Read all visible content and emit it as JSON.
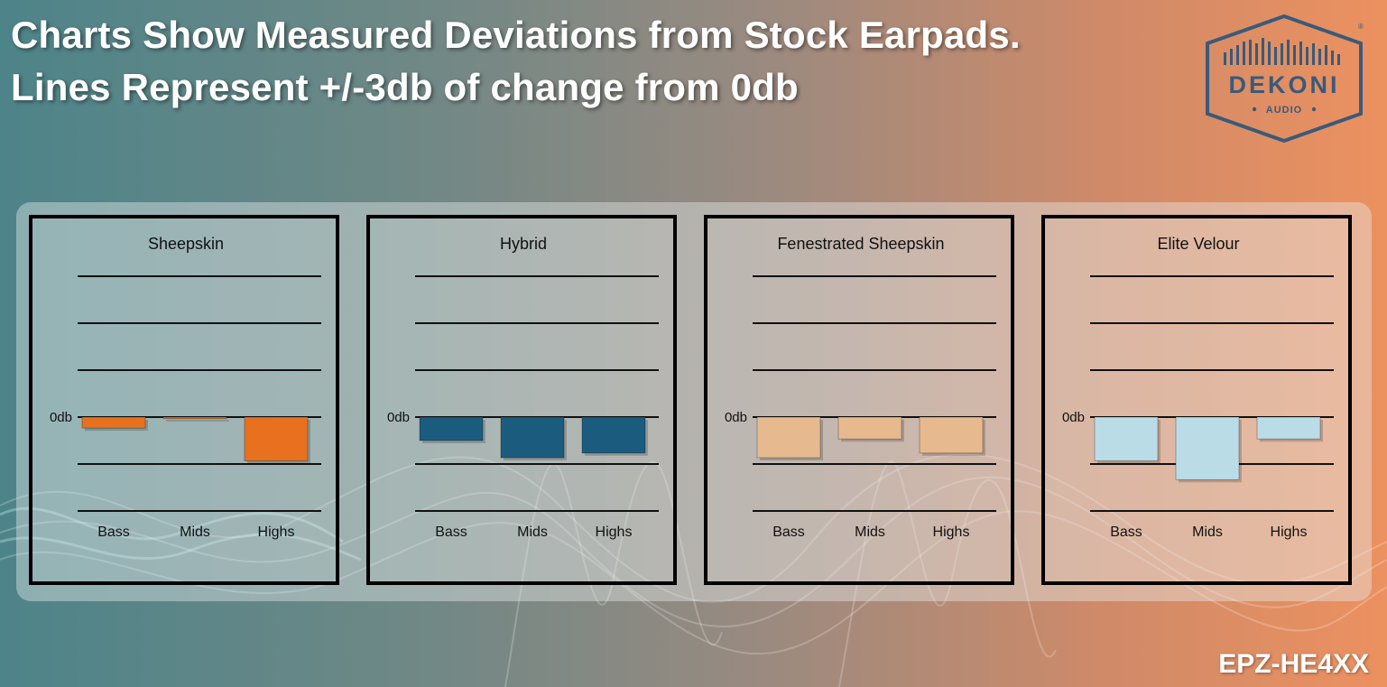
{
  "headline": {
    "line1": "Charts Show Measured Deviations from Stock Earpads.",
    "line2": "Lines Represent +/-3db of change from 0db"
  },
  "logo": {
    "brand": "DEKONI",
    "sub": "AUDIO",
    "registered": "®",
    "color": "#3a5a7a"
  },
  "model_code": "EPZ-HE4XX",
  "chart_data": [
    {
      "type": "bar",
      "title": "Sheepskin",
      "categories": [
        "Bass",
        "Mids",
        "Highs"
      ],
      "values": [
        -0.7,
        -0.1,
        -2.8
      ],
      "zero_label": "0db",
      "ylim": [
        -6,
        9
      ],
      "gridlines": [
        9,
        6,
        3,
        -3,
        -6
      ],
      "color": "#e8711f"
    },
    {
      "type": "bar",
      "title": "Hybrid",
      "categories": [
        "Bass",
        "Mids",
        "Highs"
      ],
      "values": [
        -1.5,
        -2.6,
        -2.3
      ],
      "zero_label": "0db",
      "ylim": [
        -6,
        9
      ],
      "gridlines": [
        9,
        6,
        3,
        -3,
        -6
      ],
      "color": "#1b5b7e"
    },
    {
      "type": "bar",
      "title": "Fenestrated Sheepskin",
      "categories": [
        "Bass",
        "Mids",
        "Highs"
      ],
      "values": [
        -2.6,
        -1.4,
        -2.3
      ],
      "zero_label": "0db",
      "ylim": [
        -6,
        9
      ],
      "gridlines": [
        9,
        6,
        3,
        -3,
        -6
      ],
      "color": "#e6b98e"
    },
    {
      "type": "bar",
      "title": "Elite Velour",
      "categories": [
        "Bass",
        "Mids",
        "Highs"
      ],
      "values": [
        -2.8,
        -4.0,
        -1.4
      ],
      "zero_label": "0db",
      "ylim": [
        -6,
        9
      ],
      "gridlines": [
        9,
        6,
        3,
        -3,
        -6
      ],
      "color": "#b9dce6"
    }
  ]
}
